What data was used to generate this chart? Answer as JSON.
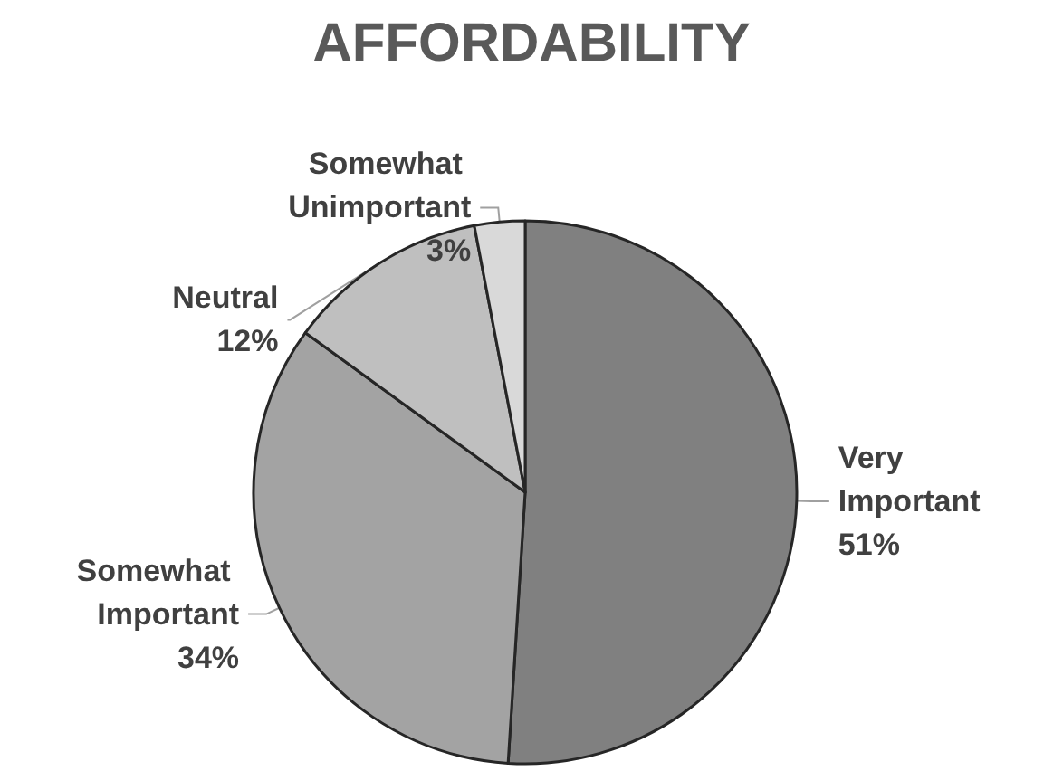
{
  "chart_data": {
    "type": "pie",
    "title": "AFFORDABILITY",
    "categories": [
      "Very Important",
      "Somewhat Important",
      "Neutral",
      "Somewhat Unimportant"
    ],
    "values": [
      51,
      34,
      12,
      3
    ],
    "value_labels": [
      "51%",
      "34%",
      "12%",
      "3%"
    ],
    "colors": [
      "#808080",
      "#a3a3a3",
      "#bfbfbf",
      "#d9d9d9"
    ],
    "legend": false
  }
}
